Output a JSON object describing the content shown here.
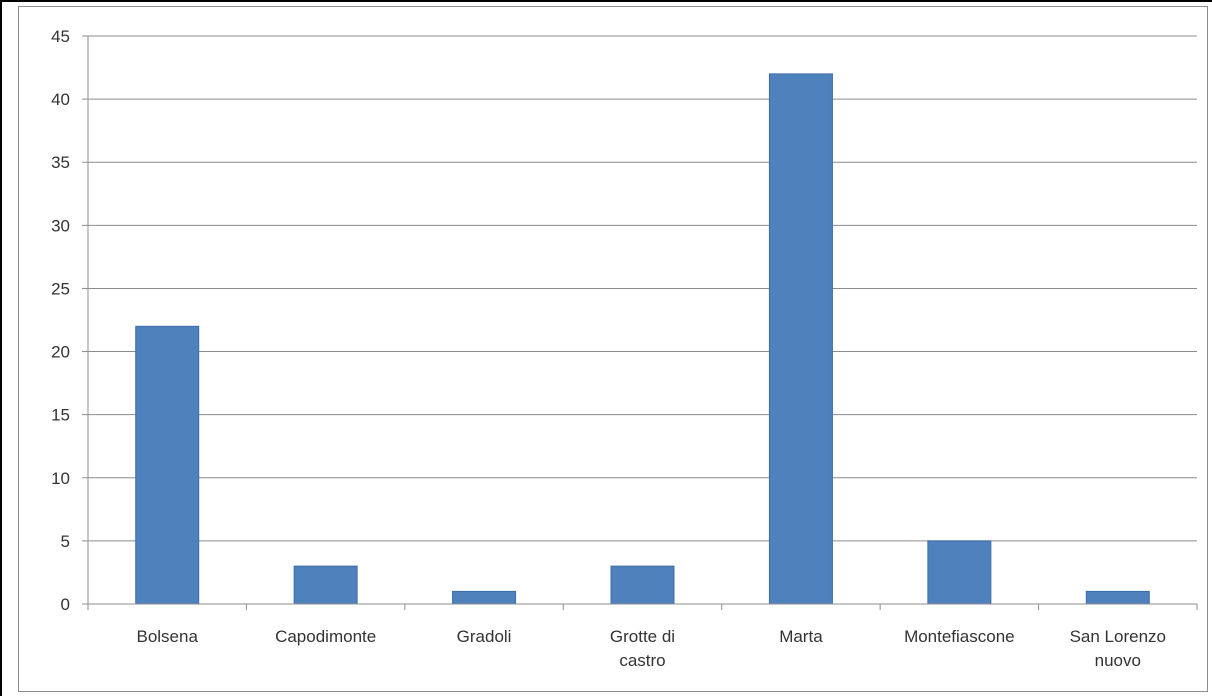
{
  "chart_data": {
    "type": "bar",
    "title": "",
    "xlabel": "",
    "ylabel": "",
    "categories": [
      [
        "Bolsena"
      ],
      [
        "Capodimonte"
      ],
      [
        "Gradoli"
      ],
      [
        "Grotte di",
        "castro"
      ],
      [
        "Marta"
      ],
      [
        "Montefiascone"
      ],
      [
        "San Lorenzo",
        "nuovo"
      ]
    ],
    "values": [
      22,
      3,
      1,
      3,
      42,
      5,
      1
    ],
    "ylim": [
      0,
      45
    ],
    "yticks": [
      0,
      5,
      10,
      15,
      20,
      25,
      30,
      35,
      40,
      45
    ],
    "grid": true,
    "legend": "none",
    "colors": {
      "bar": "#4f81bd",
      "bar_edge": "#3c6ea8",
      "grid": "#8c8c8c",
      "axis": "#8c8c8c",
      "text": "#333333"
    }
  }
}
